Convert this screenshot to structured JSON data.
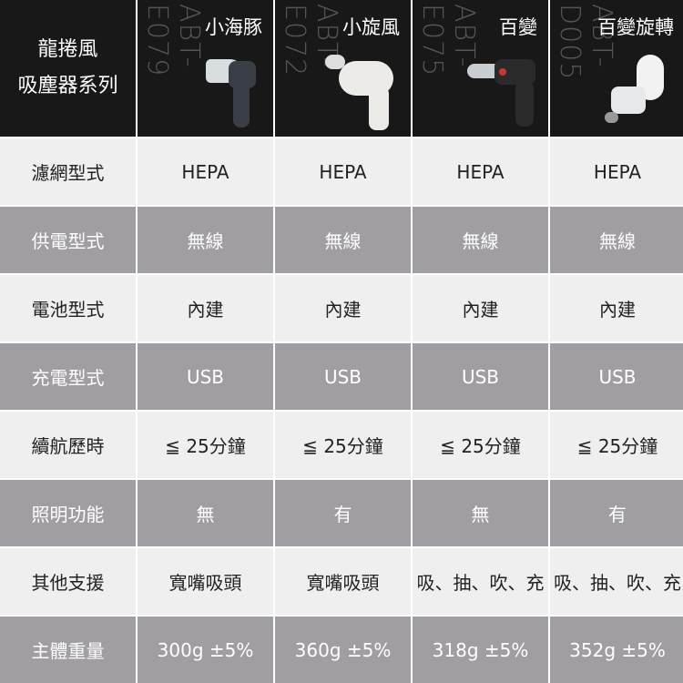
{
  "header": {
    "title_line1": "龍捲風",
    "title_line2": "吸塵器系列"
  },
  "products": [
    {
      "model": "ABT-E079",
      "name": "小海豚",
      "color": "#3a3f47"
    },
    {
      "model": "ABT-E072",
      "name": "小旋風",
      "color": "#ecebe7"
    },
    {
      "model": "ABT-E075",
      "name": "百變",
      "color": "#2a2a2a"
    },
    {
      "model": "ABT-D005",
      "name": "百變旋轉",
      "color": "#f2f2f2"
    }
  ],
  "rows": [
    {
      "label": "濾網型式",
      "values": [
        "HEPA",
        "HEPA",
        "HEPA",
        "HEPA"
      ]
    },
    {
      "label": "供電型式",
      "values": [
        "無線",
        "無線",
        "無線",
        "無線"
      ]
    },
    {
      "label": "電池型式",
      "values": [
        "內建",
        "內建",
        "內建",
        "內建"
      ]
    },
    {
      "label": "充電型式",
      "values": [
        "USB",
        "USB",
        "USB",
        "USB"
      ]
    },
    {
      "label": "續航歷時",
      "values": [
        "≦ 25分鐘",
        "≦ 25分鐘",
        "≦ 25分鐘",
        "≦ 25分鐘"
      ]
    },
    {
      "label": "照明功能",
      "values": [
        "無",
        "有",
        "無",
        "有"
      ]
    },
    {
      "label": "其他支援",
      "values": [
        "寬嘴吸頭",
        "寬嘴吸頭",
        "吸、抽、吹、充",
        "吸、抽、吹、充"
      ]
    },
    {
      "label": "主體重量",
      "values": [
        "300g ±5%",
        "360g ±5%",
        "318g ±5%",
        "352g ±5%"
      ]
    }
  ]
}
